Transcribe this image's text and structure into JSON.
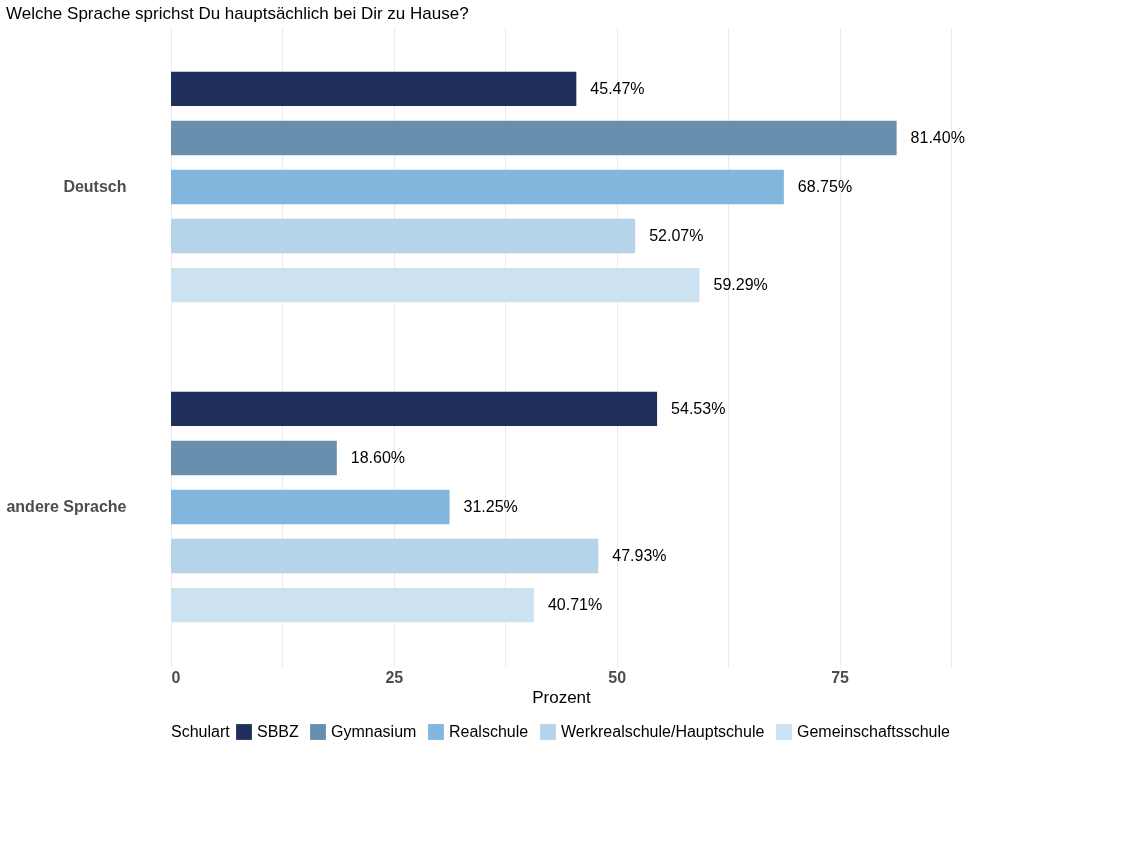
{
  "chart_data": {
    "type": "bar",
    "orientation": "horizontal",
    "title": "Welche Sprache sprichst Du hauptsächlich bei Dir zu Hause?",
    "xlabel": "Prozent",
    "legend_title": "Schulart",
    "legend": "bottom",
    "grid": "x",
    "categories": [
      "Deutsch",
      "andere Sprache"
    ],
    "xlim": [
      0,
      87.5
    ],
    "xticks": [
      0,
      {
        "value": 12.5,
        "label": null
      },
      25,
      {
        "value": 37.5,
        "label": null
      },
      50,
      {
        "value": 62.5,
        "label": null
      },
      75,
      {
        "value": 87.5,
        "label": null
      }
    ],
    "series": [
      {
        "name": "SBBZ",
        "color": "#1f2f5c",
        "values": [
          45.47,
          54.53
        ],
        "value_labels": [
          "45.47%",
          "54.53%"
        ]
      },
      {
        "name": "Gymnasium",
        "color": "#6890ae",
        "values": [
          81.4,
          18.6
        ],
        "value_labels": [
          "81.40%",
          "18.60%"
        ]
      },
      {
        "name": "Realschule",
        "color": "#82b6dc",
        "values": [
          68.75,
          31.25
        ],
        "value_labels": [
          "68.75%",
          "31.25%"
        ]
      },
      {
        "name": "Werkrealschule/Hauptschule",
        "color": "#b5d4e9",
        "values": [
          52.07,
          47.93
        ],
        "value_labels": [
          "52.07%",
          "47.93%"
        ]
      },
      {
        "name": "Gemeinschaftsschule",
        "color": "#cde2f0",
        "values": [
          59.29,
          40.71
        ],
        "value_labels": [
          "59.29%",
          "40.71%"
        ]
      }
    ]
  }
}
